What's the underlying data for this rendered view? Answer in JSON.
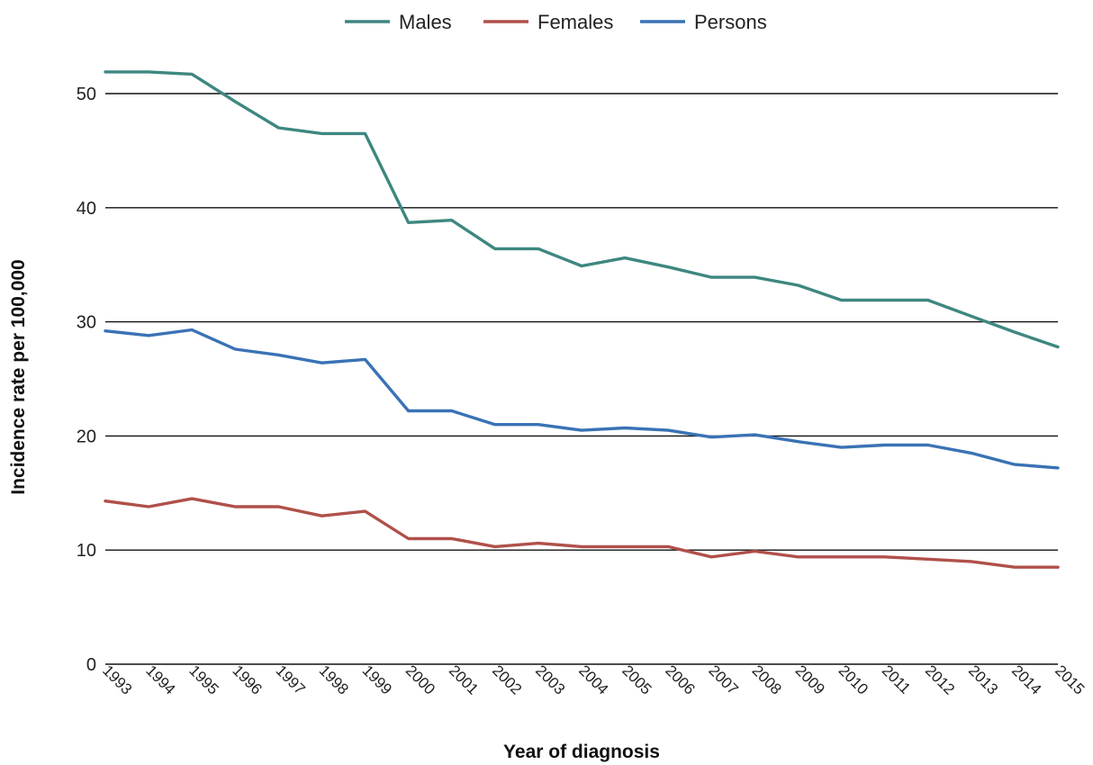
{
  "chart_data": {
    "type": "line",
    "title": "",
    "xlabel": "Year of diagnosis",
    "ylabel": "Incidence rate per 100,000",
    "ylim": [
      0,
      52
    ],
    "yticks": [
      0,
      10,
      20,
      30,
      40,
      50
    ],
    "grid": "horizontal",
    "legend_position": "top-center",
    "categories": [
      "1993",
      "1994",
      "1995",
      "1996",
      "1997",
      "1998",
      "1999",
      "2000",
      "2001",
      "2002",
      "2003",
      "2004",
      "2005",
      "2006",
      "2007",
      "2008",
      "2009",
      "2010",
      "2011",
      "2012",
      "2013",
      "2014",
      "2015"
    ],
    "series": [
      {
        "name": "Males",
        "color": "#3e8780",
        "values": [
          51.9,
          51.9,
          51.7,
          49.3,
          47.0,
          46.5,
          46.5,
          38.7,
          38.9,
          36.4,
          36.4,
          34.9,
          35.6,
          34.8,
          33.9,
          33.9,
          33.2,
          31.9,
          31.9,
          31.9,
          30.5,
          29.1,
          27.8
        ]
      },
      {
        "name": "Females",
        "color": "#b0504a",
        "values": [
          14.3,
          13.8,
          14.5,
          13.8,
          13.8,
          13.0,
          13.4,
          11.0,
          11.0,
          10.3,
          10.6,
          10.3,
          10.3,
          10.3,
          9.4,
          9.9,
          9.4,
          9.4,
          9.4,
          9.2,
          9.0,
          8.5,
          8.5
        ]
      },
      {
        "name": "Persons",
        "color": "#3a72b5",
        "values": [
          29.2,
          28.8,
          29.3,
          27.6,
          27.1,
          26.4,
          26.7,
          22.2,
          22.2,
          21.0,
          21.0,
          20.5,
          20.7,
          20.5,
          19.9,
          20.1,
          19.5,
          19.0,
          19.2,
          19.2,
          18.5,
          17.5,
          17.2
        ]
      }
    ]
  }
}
